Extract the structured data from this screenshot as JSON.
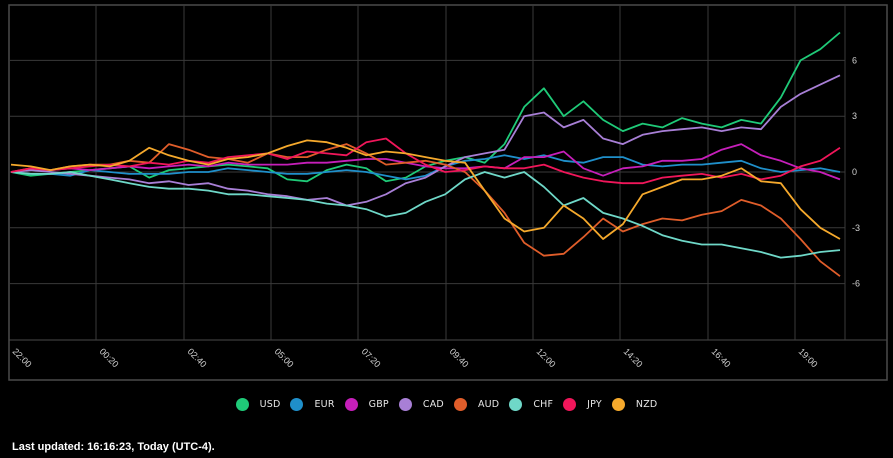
{
  "chart_data": {
    "type": "line",
    "title": "",
    "xlabel": "",
    "ylabel": "",
    "x": [
      "22:00",
      "00:20",
      "02:40",
      "05:00",
      "07:20",
      "09:40",
      "12:00",
      "14:20",
      "16:40",
      "19:00"
    ],
    "x_tick_labels": [
      "22:00",
      "00:20",
      "02:40",
      "05:00",
      "07:20",
      "09:40",
      "12:00",
      "14:20",
      "16:40",
      "19:00"
    ],
    "y_ticks": [
      6,
      3,
      0,
      -3,
      -6
    ],
    "ylim": [
      -9,
      9
    ],
    "grid": true,
    "legend_position": "bottom",
    "n_points": 43,
    "series": [
      {
        "name": "USD",
        "color": "#1fca78",
        "values": [
          0,
          -0.2,
          -0.1,
          0,
          0.1,
          0.2,
          0.3,
          -0.3,
          0.1,
          0.2,
          0.3,
          0.4,
          0.3,
          0.2,
          -0.4,
          -0.5,
          0.1,
          0.4,
          0.2,
          -0.5,
          -0.3,
          0.3,
          0.6,
          0.8,
          0.5,
          1.5,
          3.5,
          4.5,
          3.0,
          3.8,
          2.8,
          2.2,
          2.6,
          2.4,
          2.9,
          2.6,
          2.4,
          2.8,
          2.6,
          4.0,
          6.0,
          6.6,
          7.5
        ]
      },
      {
        "name": "EUR",
        "color": "#1f8fca",
        "values": [
          0,
          -0.1,
          -0.1,
          -0.2,
          0.1,
          0,
          -0.1,
          -0.1,
          -0.1,
          0,
          0,
          0.2,
          0.1,
          0,
          -0.1,
          -0.1,
          0,
          0.1,
          0,
          -0.2,
          -0.4,
          -0.2,
          0.3,
          0.6,
          0.7,
          0.9,
          0.7,
          0.9,
          0.6,
          0.5,
          0.8,
          0.8,
          0.4,
          0.3,
          0.4,
          0.4,
          0.5,
          0.6,
          0.2,
          0.0,
          0.1,
          0.2,
          0
        ]
      },
      {
        "name": "GBP",
        "color": "#c61fba",
        "values": [
          0,
          0.1,
          0.1,
          0.2,
          0.1,
          0.2,
          0.3,
          0.2,
          0.3,
          0.4,
          0.3,
          0.5,
          0.4,
          0.4,
          0.4,
          0.5,
          0.5,
          0.6,
          0.7,
          0.7,
          0.5,
          0.3,
          0.2,
          0.2,
          0.3,
          0.2,
          0.8,
          0.8,
          1.1,
          0.2,
          -0.2,
          0.2,
          0.3,
          0.6,
          0.6,
          0.7,
          1.2,
          1.5,
          0.9,
          0.6,
          0.2,
          0.0,
          -0.4
        ]
      },
      {
        "name": "CAD",
        "color": "#a87fd6",
        "values": [
          0,
          0.1,
          0,
          -0.1,
          -0.2,
          -0.3,
          -0.4,
          -0.6,
          -0.5,
          -0.7,
          -0.6,
          -0.9,
          -1.0,
          -1.2,
          -1.3,
          -1.5,
          -1.4,
          -1.8,
          -1.6,
          -1.2,
          -0.6,
          -0.3,
          0.3,
          0.8,
          1.0,
          1.2,
          3.0,
          3.2,
          2.4,
          2.8,
          1.8,
          1.5,
          2.0,
          2.2,
          2.3,
          2.4,
          2.2,
          2.4,
          2.3,
          3.5,
          4.2,
          4.7,
          5.2
        ]
      },
      {
        "name": "AUD",
        "color": "#e05d2a",
        "values": [
          0,
          0.2,
          0.1,
          0.3,
          0.4,
          0.4,
          0.6,
          0.5,
          1.5,
          1.2,
          0.8,
          0.7,
          0.5,
          1.0,
          0.8,
          0.8,
          1.2,
          1.5,
          1.0,
          0.4,
          0.5,
          0.6,
          0.4,
          0.0,
          -1.0,
          -2.2,
          -3.8,
          -4.5,
          -4.4,
          -3.5,
          -2.5,
          -3.2,
          -2.8,
          -2.5,
          -2.6,
          -2.3,
          -2.1,
          -1.5,
          -1.8,
          -2.5,
          -3.6,
          -4.8,
          -5.6
        ]
      },
      {
        "name": "CHF",
        "color": "#6fd8c8",
        "values": [
          0,
          -0.1,
          -0.1,
          0,
          -0.2,
          -0.4,
          -0.6,
          -0.8,
          -0.9,
          -0.9,
          -1.0,
          -1.2,
          -1.2,
          -1.3,
          -1.4,
          -1.5,
          -1.7,
          -1.8,
          -2.0,
          -2.4,
          -2.2,
          -1.6,
          -1.2,
          -0.4,
          0,
          -0.3,
          0.0,
          -0.8,
          -1.8,
          -1.4,
          -2.2,
          -2.5,
          -2.9,
          -3.4,
          -3.7,
          -3.9,
          -3.9,
          -4.1,
          -4.3,
          -4.6,
          -4.5,
          -4.3,
          -4.2
        ]
      },
      {
        "name": "JPY",
        "color": "#f0165a",
        "values": [
          0,
          0.2,
          0.1,
          0.2,
          0.3,
          0.4,
          0.3,
          0.5,
          0.4,
          0.6,
          0.5,
          0.8,
          0.9,
          1.0,
          0.7,
          1.1,
          1.0,
          0.9,
          1.6,
          1.8,
          1.0,
          0.4,
          0.0,
          0.1,
          0.3,
          0.2,
          0.2,
          0.4,
          0.0,
          -0.3,
          -0.5,
          -0.6,
          -0.6,
          -0.3,
          -0.2,
          -0.1,
          -0.3,
          -0.1,
          -0.4,
          -0.2,
          0.3,
          0.6,
          1.3
        ]
      },
      {
        "name": "NZD",
        "color": "#f5a92c",
        "values": [
          0.4,
          0.3,
          0.1,
          0.3,
          0.4,
          0.3,
          0.6,
          1.3,
          0.9,
          0.6,
          0.4,
          0.7,
          0.8,
          1.0,
          1.4,
          1.7,
          1.6,
          1.3,
          0.9,
          1.1,
          1.0,
          0.8,
          0.6,
          0.5,
          -1.0,
          -2.5,
          -3.2,
          -3.0,
          -1.8,
          -2.5,
          -3.6,
          -2.8,
          -1.2,
          -0.8,
          -0.4,
          -0.4,
          -0.2,
          0.2,
          -0.5,
          -0.6,
          -2.0,
          -3.0,
          -3.6
        ]
      }
    ]
  },
  "legend": {
    "items": [
      {
        "label": "USD",
        "color": "#1fca78"
      },
      {
        "label": "EUR",
        "color": "#1f8fca"
      },
      {
        "label": "GBP",
        "color": "#c61fba"
      },
      {
        "label": "CAD",
        "color": "#a87fd6"
      },
      {
        "label": "AUD",
        "color": "#e05d2a"
      },
      {
        "label": "CHF",
        "color": "#6fd8c8"
      },
      {
        "label": "JPY",
        "color": "#f0165a"
      },
      {
        "label": "NZD",
        "color": "#f5a92c"
      }
    ]
  },
  "footer": {
    "last_updated": "Last updated: 16:16:23, Today (UTC-4)."
  },
  "colors": {
    "background": "#000000",
    "grid": "#3a3a3a",
    "frame": "#4a4a4a",
    "tick_text": "#d0d0d0"
  }
}
